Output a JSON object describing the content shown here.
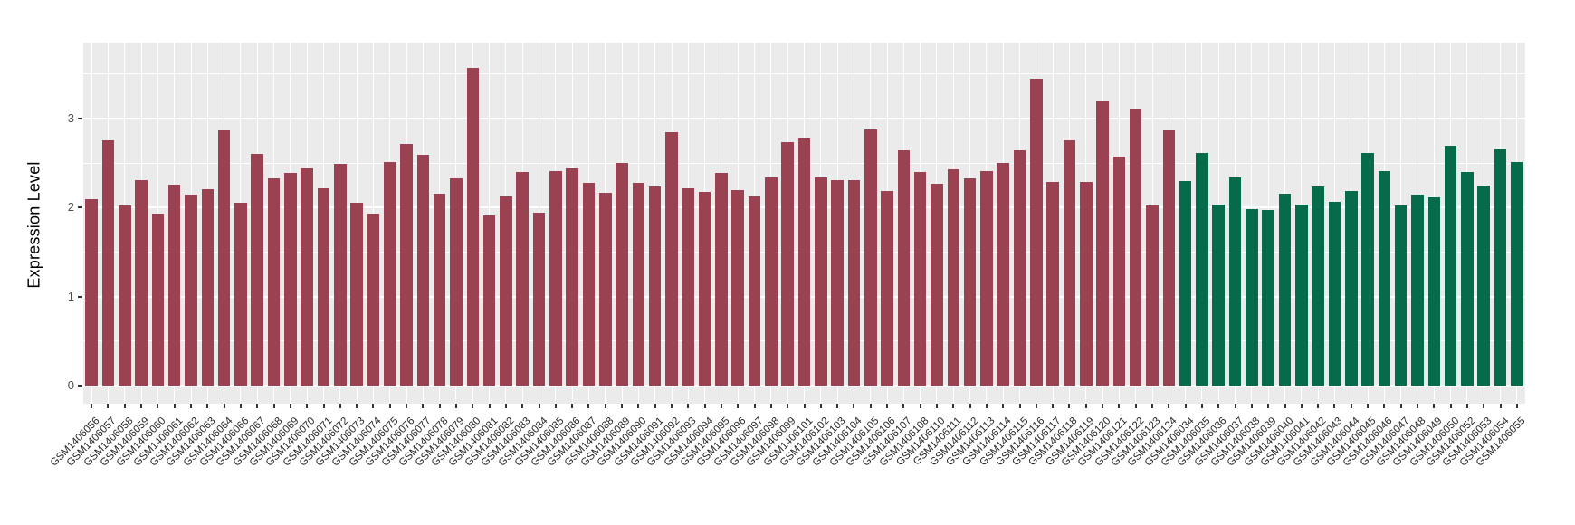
{
  "chart_data": {
    "type": "bar",
    "title": "",
    "xlabel": "",
    "ylabel": "Expression Level",
    "yticks": [
      0,
      1,
      2,
      3
    ],
    "minor_yticks": [
      0.5,
      1.5,
      2.5,
      3.5
    ],
    "ylim": [
      -0.2,
      3.86
    ],
    "grid": "on",
    "legend": "none",
    "panel_background": "#EBEBEB",
    "gridline_color": "#FFFFFF",
    "axis_text_color": "#4d4d4d",
    "colors": {
      "red": "#9A4152",
      "green": "#056B4A"
    },
    "samples": [
      {
        "id": "GSM1406056",
        "value": 2.1,
        "group": "red"
      },
      {
        "id": "GSM1406057",
        "value": 2.76,
        "group": "red"
      },
      {
        "id": "GSM1406058",
        "value": 2.02,
        "group": "red"
      },
      {
        "id": "GSM1406059",
        "value": 2.31,
        "group": "red"
      },
      {
        "id": "GSM1406060",
        "value": 1.93,
        "group": "red"
      },
      {
        "id": "GSM1406061",
        "value": 2.26,
        "group": "red"
      },
      {
        "id": "GSM1406062",
        "value": 2.15,
        "group": "red"
      },
      {
        "id": "GSM1406063",
        "value": 2.21,
        "group": "red"
      },
      {
        "id": "GSM1406064",
        "value": 2.87,
        "group": "red"
      },
      {
        "id": "GSM1406066",
        "value": 2.05,
        "group": "red"
      },
      {
        "id": "GSM1406067",
        "value": 2.6,
        "group": "red"
      },
      {
        "id": "GSM1406068",
        "value": 2.33,
        "group": "red"
      },
      {
        "id": "GSM1406069",
        "value": 2.39,
        "group": "red"
      },
      {
        "id": "GSM1406070",
        "value": 2.44,
        "group": "red"
      },
      {
        "id": "GSM1406071",
        "value": 2.22,
        "group": "red"
      },
      {
        "id": "GSM1406072",
        "value": 2.49,
        "group": "red"
      },
      {
        "id": "GSM1406073",
        "value": 2.05,
        "group": "red"
      },
      {
        "id": "GSM1406074",
        "value": 1.93,
        "group": "red"
      },
      {
        "id": "GSM1406075",
        "value": 2.51,
        "group": "red"
      },
      {
        "id": "GSM1406076",
        "value": 2.72,
        "group": "red"
      },
      {
        "id": "GSM1406077",
        "value": 2.59,
        "group": "red"
      },
      {
        "id": "GSM1406078",
        "value": 2.16,
        "group": "red"
      },
      {
        "id": "GSM1406079",
        "value": 2.33,
        "group": "red"
      },
      {
        "id": "GSM1406080",
        "value": 3.57,
        "group": "red"
      },
      {
        "id": "GSM1406081",
        "value": 1.91,
        "group": "red"
      },
      {
        "id": "GSM1406082",
        "value": 2.13,
        "group": "red"
      },
      {
        "id": "GSM1406083",
        "value": 2.4,
        "group": "red"
      },
      {
        "id": "GSM1406084",
        "value": 1.94,
        "group": "red"
      },
      {
        "id": "GSM1406085",
        "value": 2.41,
        "group": "red"
      },
      {
        "id": "GSM1406086",
        "value": 2.44,
        "group": "red"
      },
      {
        "id": "GSM1406087",
        "value": 2.28,
        "group": "red"
      },
      {
        "id": "GSM1406088",
        "value": 2.17,
        "group": "red"
      },
      {
        "id": "GSM1406089",
        "value": 2.5,
        "group": "red"
      },
      {
        "id": "GSM1406090",
        "value": 2.28,
        "group": "red"
      },
      {
        "id": "GSM1406091",
        "value": 2.24,
        "group": "red"
      },
      {
        "id": "GSM1406092",
        "value": 2.85,
        "group": "red"
      },
      {
        "id": "GSM1406093",
        "value": 2.22,
        "group": "red"
      },
      {
        "id": "GSM1406094",
        "value": 2.18,
        "group": "red"
      },
      {
        "id": "GSM1406095",
        "value": 2.39,
        "group": "red"
      },
      {
        "id": "GSM1406096",
        "value": 2.2,
        "group": "red"
      },
      {
        "id": "GSM1406097",
        "value": 2.13,
        "group": "red"
      },
      {
        "id": "GSM1406098",
        "value": 2.34,
        "group": "red"
      },
      {
        "id": "GSM1406099",
        "value": 2.74,
        "group": "red"
      },
      {
        "id": "GSM1406101",
        "value": 2.78,
        "group": "red"
      },
      {
        "id": "GSM1406102",
        "value": 2.34,
        "group": "red"
      },
      {
        "id": "GSM1406103",
        "value": 2.31,
        "group": "red"
      },
      {
        "id": "GSM1406104",
        "value": 2.31,
        "group": "red"
      },
      {
        "id": "GSM1406105",
        "value": 2.88,
        "group": "red"
      },
      {
        "id": "GSM1406106",
        "value": 2.19,
        "group": "red"
      },
      {
        "id": "GSM1406107",
        "value": 2.64,
        "group": "red"
      },
      {
        "id": "GSM1406108",
        "value": 2.4,
        "group": "red"
      },
      {
        "id": "GSM1406110",
        "value": 2.27,
        "group": "red"
      },
      {
        "id": "GSM1406111",
        "value": 2.43,
        "group": "red"
      },
      {
        "id": "GSM1406112",
        "value": 2.33,
        "group": "red"
      },
      {
        "id": "GSM1406113",
        "value": 2.41,
        "group": "red"
      },
      {
        "id": "GSM1406114",
        "value": 2.5,
        "group": "red"
      },
      {
        "id": "GSM1406115",
        "value": 2.64,
        "group": "red"
      },
      {
        "id": "GSM1406116",
        "value": 3.45,
        "group": "red"
      },
      {
        "id": "GSM1406117",
        "value": 2.29,
        "group": "red"
      },
      {
        "id": "GSM1406118",
        "value": 2.76,
        "group": "red"
      },
      {
        "id": "GSM1406119",
        "value": 2.29,
        "group": "red"
      },
      {
        "id": "GSM1406120",
        "value": 3.19,
        "group": "red"
      },
      {
        "id": "GSM1406121",
        "value": 2.57,
        "group": "red"
      },
      {
        "id": "GSM1406122",
        "value": 3.11,
        "group": "red"
      },
      {
        "id": "GSM1406123",
        "value": 2.02,
        "group": "red"
      },
      {
        "id": "GSM1406124",
        "value": 2.87,
        "group": "red"
      },
      {
        "id": "GSM1406034",
        "value": 2.3,
        "group": "green"
      },
      {
        "id": "GSM1406035",
        "value": 2.61,
        "group": "green"
      },
      {
        "id": "GSM1406036",
        "value": 2.03,
        "group": "green"
      },
      {
        "id": "GSM1406037",
        "value": 2.34,
        "group": "green"
      },
      {
        "id": "GSM1406038",
        "value": 1.98,
        "group": "green"
      },
      {
        "id": "GSM1406039",
        "value": 1.97,
        "group": "green"
      },
      {
        "id": "GSM1406040",
        "value": 2.16,
        "group": "green"
      },
      {
        "id": "GSM1406041",
        "value": 2.03,
        "group": "green"
      },
      {
        "id": "GSM1406042",
        "value": 2.24,
        "group": "green"
      },
      {
        "id": "GSM1406043",
        "value": 2.07,
        "group": "green"
      },
      {
        "id": "GSM1406044",
        "value": 2.19,
        "group": "green"
      },
      {
        "id": "GSM1406045",
        "value": 2.61,
        "group": "green"
      },
      {
        "id": "GSM1406046",
        "value": 2.41,
        "group": "green"
      },
      {
        "id": "GSM1406047",
        "value": 2.02,
        "group": "green"
      },
      {
        "id": "GSM1406048",
        "value": 2.15,
        "group": "green"
      },
      {
        "id": "GSM1406049",
        "value": 2.12,
        "group": "green"
      },
      {
        "id": "GSM1406050",
        "value": 2.7,
        "group": "green"
      },
      {
        "id": "GSM1406052",
        "value": 2.4,
        "group": "green"
      },
      {
        "id": "GSM1406053",
        "value": 2.25,
        "group": "green"
      },
      {
        "id": "GSM1406054",
        "value": 2.66,
        "group": "green"
      },
      {
        "id": "GSM1406055",
        "value": 2.51,
        "group": "green"
      }
    ]
  }
}
